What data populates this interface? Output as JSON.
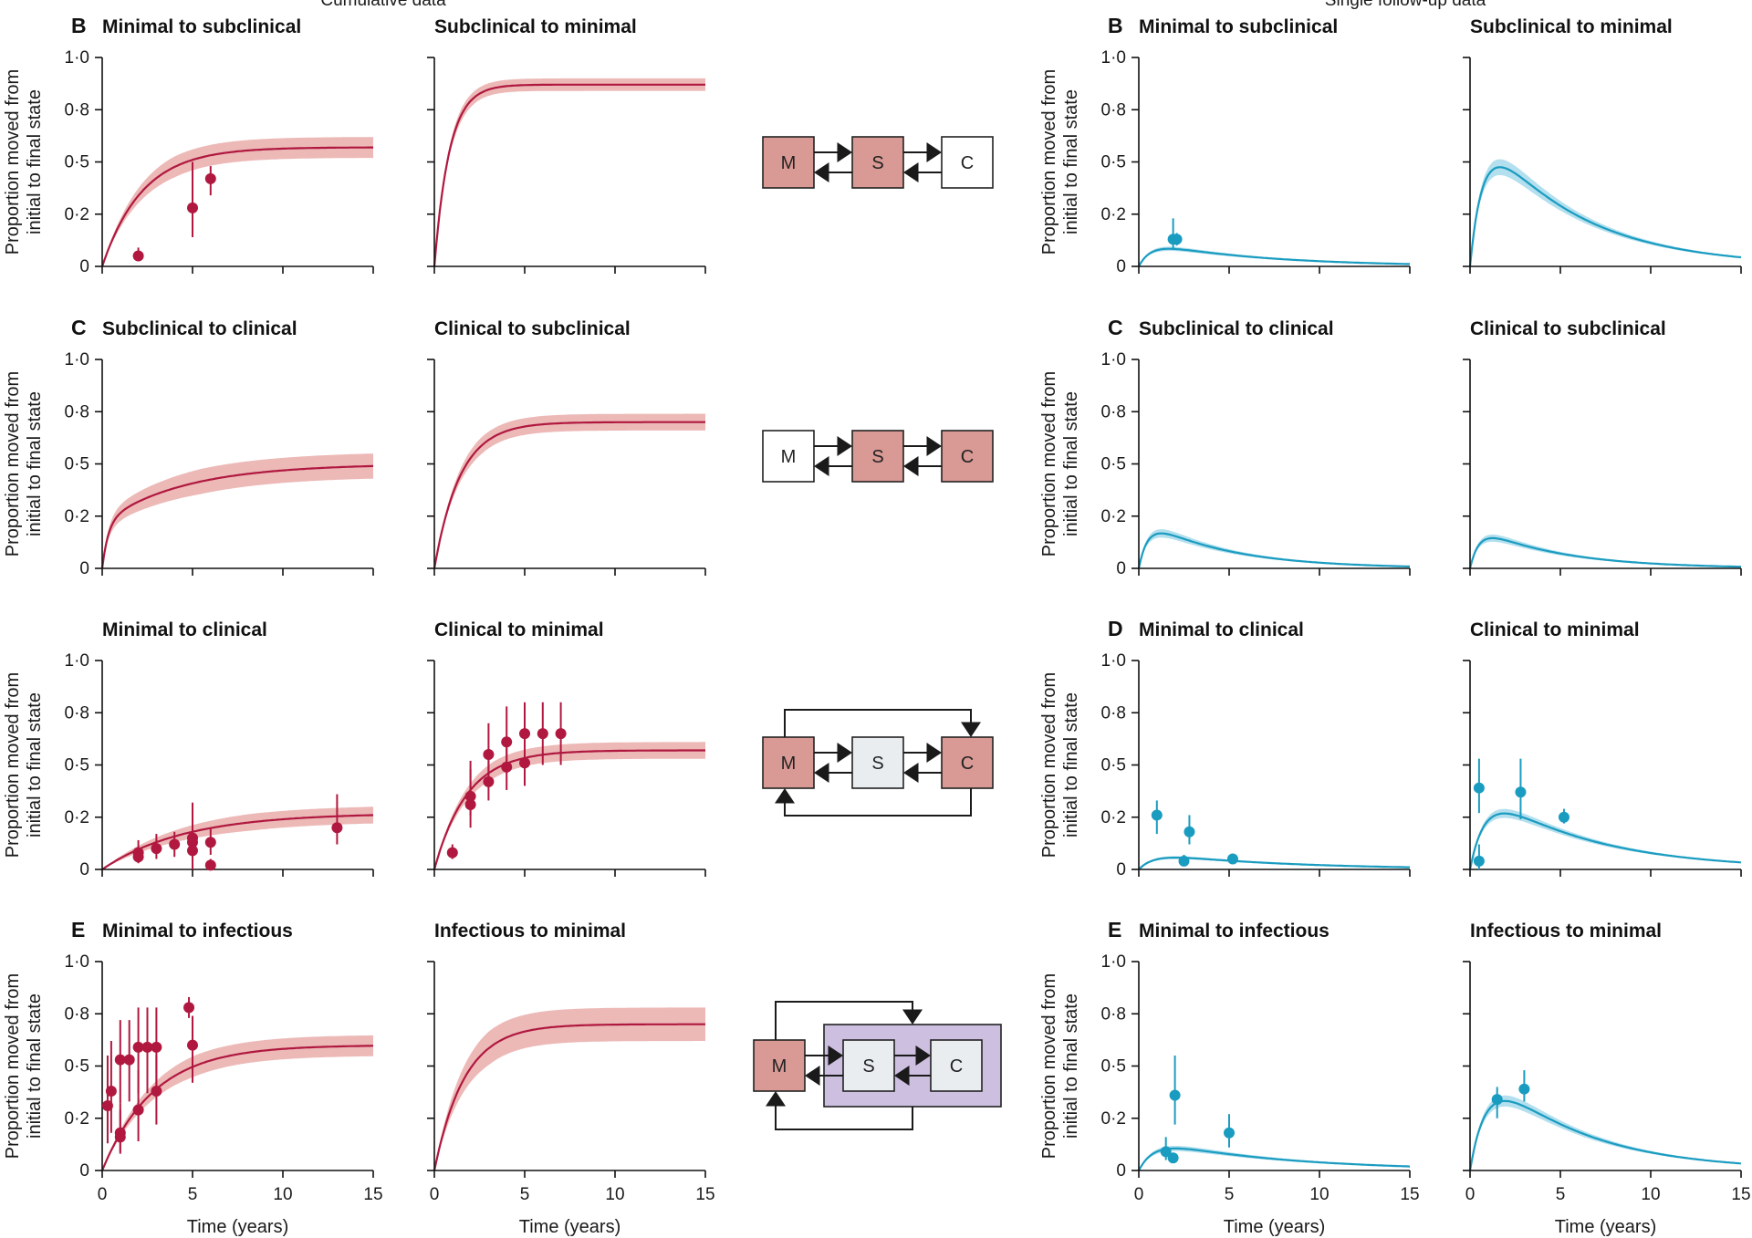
{
  "headers": {
    "left": "Cumulative data",
    "right": "Single follow-up data"
  },
  "y_axis_label_line1": "Proportion moved from",
  "y_axis_label_line2": "initial to final state",
  "x_axis_label": "Time (years)",
  "y_ticks": [
    "0",
    "0·2",
    "0·5",
    "0·8",
    "1·0"
  ],
  "x_ticks": [
    "0",
    "5",
    "10",
    "15"
  ],
  "colors": {
    "cumulative": "#b0183f",
    "cumulative_band": "#ecb9b7",
    "single": "#1a9cc0",
    "single_band": "#b3dfee",
    "state_active": "#d99994",
    "state_grey": "#e9edf0",
    "infectious_group": "#cdbfe0"
  },
  "diagrams": [
    {
      "labels": [
        "M",
        "S",
        "C"
      ],
      "states": [
        "active",
        "active",
        "white"
      ]
    },
    {
      "labels": [
        "M",
        "S",
        "C"
      ],
      "states": [
        "white",
        "active",
        "active"
      ]
    },
    {
      "labels": [
        "M",
        "S",
        "C"
      ],
      "states": [
        "active",
        "grey",
        "active"
      ]
    },
    {
      "labels": [
        "M",
        "S",
        "C"
      ],
      "states": [
        "active",
        "grey",
        "grey"
      ]
    }
  ],
  "chart_data": [
    {
      "type": "line",
      "side": "cumulative",
      "letter": "B",
      "title": "Minimal to subclinical",
      "xlim": [
        0,
        15
      ],
      "ylim": [
        0,
        1
      ],
      "curve": {
        "kind": "sat",
        "asym": 0.57,
        "rate": 0.45,
        "band": 0.05
      },
      "points": [
        {
          "x": 2,
          "y": 0.05,
          "lo": 0.03,
          "hi": 0.09
        },
        {
          "x": 5,
          "y": 0.28,
          "lo": 0.14,
          "hi": 0.5
        },
        {
          "x": 6,
          "y": 0.42,
          "lo": 0.34,
          "hi": 0.48
        }
      ]
    },
    {
      "type": "line",
      "side": "cumulative",
      "letter": "",
      "title": "Subclinical to minimal",
      "xlim": [
        0,
        15
      ],
      "ylim": [
        0,
        1
      ],
      "curve": {
        "kind": "sat",
        "asym": 0.87,
        "rate": 1.2,
        "band": 0.03
      },
      "points": []
    },
    {
      "type": "line",
      "side": "single",
      "letter": "B",
      "title": "Minimal to subclinical",
      "xlim": [
        0,
        15
      ],
      "ylim": [
        0,
        1
      ],
      "curve": {
        "kind": "peak",
        "amp": 0.11,
        "k1": 1.5,
        "k2": 0.16,
        "band": 0.12
      },
      "points": [
        {
          "x": 1.9,
          "y": 0.13,
          "lo": 0.08,
          "hi": 0.23
        },
        {
          "x": 2.1,
          "y": 0.13,
          "lo": 0.1,
          "hi": 0.16
        }
      ]
    },
    {
      "type": "line",
      "side": "single",
      "letter": "",
      "title": "Subclinical to minimal",
      "xlim": [
        0,
        15
      ],
      "ylim": [
        0,
        1
      ],
      "curve": {
        "kind": "peak",
        "amp": 0.65,
        "k1": 1.4,
        "k2": 0.19,
        "band": 0.08
      },
      "points": []
    },
    {
      "type": "line",
      "side": "cumulative",
      "letter": "C",
      "title": "Subclinical to clinical",
      "xlim": [
        0,
        15
      ],
      "ylim": [
        0,
        1
      ],
      "curve": {
        "kind": "sat2",
        "a1": 0.22,
        "r1": 3,
        "a2": 0.28,
        "r2": 0.22,
        "band": 0.06
      },
      "points": []
    },
    {
      "type": "line",
      "side": "cumulative",
      "letter": "",
      "title": "Clinical to subclinical",
      "xlim": [
        0,
        15
      ],
      "ylim": [
        0,
        1
      ],
      "curve": {
        "kind": "sat",
        "asym": 0.7,
        "rate": 0.7,
        "band": 0.04
      },
      "points": []
    },
    {
      "type": "line",
      "side": "single",
      "letter": "C",
      "title": "Subclinical to clinical",
      "xlim": [
        0,
        15
      ],
      "ylim": [
        0,
        1
      ],
      "curve": {
        "kind": "peak",
        "amp": 0.22,
        "k1": 2.0,
        "k2": 0.22,
        "band": 0.12
      },
      "points": []
    },
    {
      "type": "line",
      "side": "single",
      "letter": "",
      "title": "Clinical to subclinical",
      "xlim": [
        0,
        15
      ],
      "ylim": [
        0,
        1
      ],
      "curve": {
        "kind": "peak",
        "amp": 0.19,
        "k1": 2.0,
        "k2": 0.22,
        "band": 0.12
      },
      "points": []
    },
    {
      "type": "line",
      "side": "cumulative",
      "letter": "",
      "title": "Minimal to clinical",
      "xlim": [
        0,
        15
      ],
      "ylim": [
        0,
        1
      ],
      "curve": {
        "kind": "sat",
        "asym": 0.27,
        "rate": 0.22,
        "band": 0.04
      },
      "points": [
        {
          "x": 2,
          "y": 0.08,
          "lo": 0.03,
          "hi": 0.14
        },
        {
          "x": 2,
          "y": 0.06,
          "lo": 0.03,
          "hi": 0.1
        },
        {
          "x": 3,
          "y": 0.1,
          "lo": 0.05,
          "hi": 0.17
        },
        {
          "x": 4,
          "y": 0.12,
          "lo": 0.06,
          "hi": 0.18
        },
        {
          "x": 5,
          "y": 0.15,
          "lo": 0.05,
          "hi": 0.32
        },
        {
          "x": 5,
          "y": 0.13,
          "lo": 0.06,
          "hi": 0.2
        },
        {
          "x": 5,
          "y": 0.09,
          "lo": 0.0,
          "hi": 0.22
        },
        {
          "x": 6,
          "y": 0.13,
          "lo": 0.07,
          "hi": 0.2
        },
        {
          "x": 6,
          "y": 0.02,
          "lo": 0.0,
          "hi": 0.05
        },
        {
          "x": 13,
          "y": 0.2,
          "lo": 0.12,
          "hi": 0.36
        }
      ]
    },
    {
      "type": "line",
      "side": "cumulative",
      "letter": "",
      "title": "Clinical to minimal",
      "xlim": [
        0,
        15
      ],
      "ylim": [
        0,
        1
      ],
      "curve": {
        "kind": "sat",
        "asym": 0.57,
        "rate": 0.55,
        "band": 0.04
      },
      "points": [
        {
          "x": 1,
          "y": 0.08,
          "lo": 0.05,
          "hi": 0.12
        },
        {
          "x": 2,
          "y": 0.31,
          "lo": 0.2,
          "hi": 0.48
        },
        {
          "x": 2,
          "y": 0.35,
          "lo": 0.26,
          "hi": 0.52
        },
        {
          "x": 3,
          "y": 0.55,
          "lo": 0.41,
          "hi": 0.7
        },
        {
          "x": 3,
          "y": 0.42,
          "lo": 0.33,
          "hi": 0.56
        },
        {
          "x": 4,
          "y": 0.61,
          "lo": 0.46,
          "hi": 0.78
        },
        {
          "x": 4,
          "y": 0.49,
          "lo": 0.38,
          "hi": 0.6
        },
        {
          "x": 5,
          "y": 0.65,
          "lo": 0.5,
          "hi": 0.8
        },
        {
          "x": 5,
          "y": 0.51,
          "lo": 0.4,
          "hi": 0.62
        },
        {
          "x": 6,
          "y": 0.65,
          "lo": 0.5,
          "hi": 0.8
        },
        {
          "x": 7,
          "y": 0.65,
          "lo": 0.5,
          "hi": 0.8
        }
      ]
    },
    {
      "type": "line",
      "side": "single",
      "letter": "D",
      "title": "Minimal to clinical",
      "xlim": [
        0,
        15
      ],
      "ylim": [
        0,
        1
      ],
      "curve": {
        "kind": "peak",
        "amp": 0.075,
        "k1": 1.2,
        "k2": 0.14,
        "band": 0.12
      },
      "points": [
        {
          "x": 1,
          "y": 0.26,
          "lo": 0.17,
          "hi": 0.33
        },
        {
          "x": 2.5,
          "y": 0.04,
          "lo": 0.02,
          "hi": 0.07
        },
        {
          "x": 2.8,
          "y": 0.18,
          "lo": 0.12,
          "hi": 0.26
        },
        {
          "x": 5.2,
          "y": 0.05,
          "lo": 0.03,
          "hi": 0.06
        }
      ]
    },
    {
      "type": "line",
      "side": "single",
      "letter": "",
      "title": "Clinical to minimal",
      "xlim": [
        0,
        15
      ],
      "ylim": [
        0,
        1
      ],
      "curve": {
        "kind": "peak",
        "amp": 0.37,
        "k1": 1.2,
        "k2": 0.17,
        "band": 0.08
      },
      "points": [
        {
          "x": 0.5,
          "y": 0.04,
          "lo": 0.0,
          "hi": 0.12
        },
        {
          "x": 0.5,
          "y": 0.39,
          "lo": 0.27,
          "hi": 0.53
        },
        {
          "x": 2.8,
          "y": 0.37,
          "lo": 0.24,
          "hi": 0.53
        },
        {
          "x": 5.2,
          "y": 0.25,
          "lo": 0.22,
          "hi": 0.29
        }
      ]
    },
    {
      "type": "line",
      "side": "cumulative",
      "letter": "E",
      "title": "Minimal to infectious",
      "xlim": [
        0,
        15
      ],
      "ylim": [
        0,
        1
      ],
      "curve": {
        "kind": "sat",
        "asym": 0.6,
        "rate": 0.35,
        "band": 0.05
      },
      "points": [
        {
          "x": 0.3,
          "y": 0.31,
          "lo": 0.13,
          "hi": 0.55
        },
        {
          "x": 0.5,
          "y": 0.38,
          "lo": 0.18,
          "hi": 0.62
        },
        {
          "x": 1,
          "y": 0.18,
          "lo": 0.09,
          "hi": 0.32
        },
        {
          "x": 1,
          "y": 0.16,
          "lo": 0.08,
          "hi": 0.29
        },
        {
          "x": 1,
          "y": 0.53,
          "lo": 0.32,
          "hi": 0.72
        },
        {
          "x": 1.5,
          "y": 0.53,
          "lo": 0.33,
          "hi": 0.72
        },
        {
          "x": 2,
          "y": 0.29,
          "lo": 0.14,
          "hi": 0.48
        },
        {
          "x": 2,
          "y": 0.59,
          "lo": 0.37,
          "hi": 0.78
        },
        {
          "x": 2.5,
          "y": 0.59,
          "lo": 0.37,
          "hi": 0.78
        },
        {
          "x": 3,
          "y": 0.59,
          "lo": 0.37,
          "hi": 0.78
        },
        {
          "x": 3,
          "y": 0.38,
          "lo": 0.22,
          "hi": 0.55
        },
        {
          "x": 4.8,
          "y": 0.78,
          "lo": 0.73,
          "hi": 0.83
        },
        {
          "x": 5,
          "y": 0.6,
          "lo": 0.42,
          "hi": 0.74
        }
      ]
    },
    {
      "type": "line",
      "side": "cumulative",
      "letter": "",
      "title": "Infectious to minimal",
      "xlim": [
        0,
        15
      ],
      "ylim": [
        0,
        1
      ],
      "curve": {
        "kind": "sat",
        "asym": 0.7,
        "rate": 0.6,
        "band": 0.08
      },
      "points": []
    },
    {
      "type": "line",
      "side": "single",
      "letter": "E",
      "title": "Minimal to infectious",
      "xlim": [
        0,
        15
      ],
      "ylim": [
        0,
        1
      ],
      "curve": {
        "kind": "peak",
        "amp": 0.14,
        "k1": 1.2,
        "k2": 0.14,
        "band": 0.12
      },
      "points": [
        {
          "x": 1.5,
          "y": 0.09,
          "lo": 0.05,
          "hi": 0.16
        },
        {
          "x": 1.9,
          "y": 0.06,
          "lo": 0.05,
          "hi": 0.08
        },
        {
          "x": 2,
          "y": 0.36,
          "lo": 0.22,
          "hi": 0.55
        },
        {
          "x": 5,
          "y": 0.18,
          "lo": 0.11,
          "hi": 0.27
        }
      ]
    },
    {
      "type": "line",
      "side": "single",
      "letter": "",
      "title": "Infectious to minimal",
      "xlim": [
        0,
        15
      ],
      "ylim": [
        0,
        1
      ],
      "curve": {
        "kind": "peak",
        "amp": 0.48,
        "k1": 1.1,
        "k2": 0.19,
        "band": 0.08
      },
      "points": [
        {
          "x": 1.5,
          "y": 0.34,
          "lo": 0.25,
          "hi": 0.4
        },
        {
          "x": 3,
          "y": 0.39,
          "lo": 0.33,
          "hi": 0.48
        }
      ]
    }
  ]
}
